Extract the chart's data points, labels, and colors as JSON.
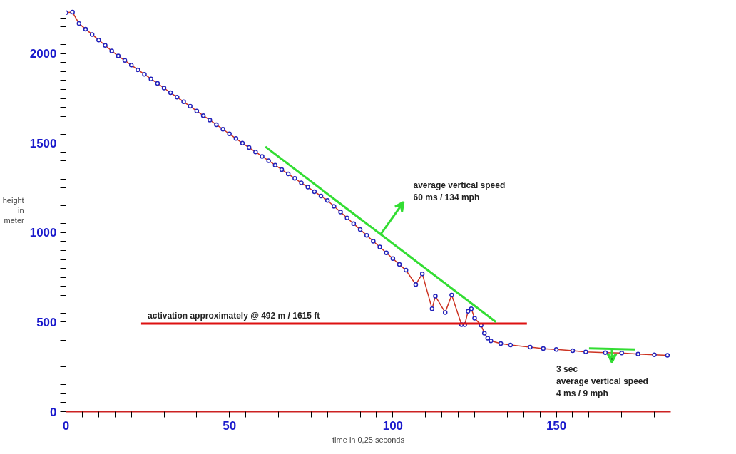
{
  "chart_data": {
    "type": "line",
    "xlabel": "time in 0,25 seconds",
    "ylabel": "height\nin\nmeter",
    "marker": "circle",
    "line_style": "solid",
    "grid": false,
    "xlim": [
      0,
      185
    ],
    "ylim": [
      0,
      2250
    ],
    "xticks": [
      0,
      {
        "value": 5,
        "label": null
      },
      {
        "value": 10,
        "label": null
      },
      {
        "value": 15,
        "label": null
      },
      {
        "value": 20,
        "label": null
      },
      {
        "value": 25,
        "label": null
      },
      {
        "value": 30,
        "label": null
      },
      {
        "value": 35,
        "label": null
      },
      {
        "value": 40,
        "label": null
      },
      {
        "value": 45,
        "label": null
      },
      50,
      {
        "value": 55,
        "label": null
      },
      {
        "value": 60,
        "label": null
      },
      {
        "value": 65,
        "label": null
      },
      {
        "value": 70,
        "label": null
      },
      {
        "value": 75,
        "label": null
      },
      {
        "value": 80,
        "label": null
      },
      {
        "value": 85,
        "label": null
      },
      {
        "value": 90,
        "label": null
      },
      {
        "value": 95,
        "label": null
      },
      100,
      {
        "value": 105,
        "label": null
      },
      {
        "value": 110,
        "label": null
      },
      {
        "value": 115,
        "label": null
      },
      {
        "value": 120,
        "label": null
      },
      {
        "value": 125,
        "label": null
      },
      {
        "value": 130,
        "label": null
      },
      {
        "value": 135,
        "label": null
      },
      {
        "value": 140,
        "label": null
      },
      {
        "value": 145,
        "label": null
      },
      150,
      {
        "value": 155,
        "label": null
      },
      {
        "value": 160,
        "label": null
      },
      {
        "value": 165,
        "label": null
      },
      {
        "value": 170,
        "label": null
      },
      {
        "value": 175,
        "label": null
      },
      {
        "value": 180,
        "label": null
      }
    ],
    "yticks": [
      0,
      {
        "value": 50,
        "label": null
      },
      {
        "value": 100,
        "label": null
      },
      {
        "value": 150,
        "label": null
      },
      {
        "value": 200,
        "label": null
      },
      {
        "value": 250,
        "label": null
      },
      {
        "value": 300,
        "label": null
      },
      {
        "value": 350,
        "label": null
      },
      {
        "value": 400,
        "label": null
      },
      {
        "value": 450,
        "label": null
      },
      500,
      {
        "value": 550,
        "label": null
      },
      {
        "value": 600,
        "label": null
      },
      {
        "value": 650,
        "label": null
      },
      {
        "value": 700,
        "label": null
      },
      {
        "value": 750,
        "label": null
      },
      {
        "value": 800,
        "label": null
      },
      {
        "value": 850,
        "label": null
      },
      {
        "value": 900,
        "label": null
      },
      {
        "value": 950,
        "label": null
      },
      1000,
      {
        "value": 1050,
        "label": null
      },
      {
        "value": 1100,
        "label": null
      },
      {
        "value": 1150,
        "label": null
      },
      {
        "value": 1200,
        "label": null
      },
      {
        "value": 1250,
        "label": null
      },
      {
        "value": 1300,
        "label": null
      },
      {
        "value": 1350,
        "label": null
      },
      {
        "value": 1400,
        "label": null
      },
      {
        "value": 1450,
        "label": null
      },
      1500,
      {
        "value": 1550,
        "label": null
      },
      {
        "value": 1600,
        "label": null
      },
      {
        "value": 1650,
        "label": null
      },
      {
        "value": 1700,
        "label": null
      },
      {
        "value": 1750,
        "label": null
      },
      {
        "value": 1800,
        "label": null
      },
      {
        "value": 1850,
        "label": null
      },
      {
        "value": 1900,
        "label": null
      },
      {
        "value": 1950,
        "label": null
      },
      2000,
      {
        "value": 2050,
        "label": null
      },
      {
        "value": 2100,
        "label": null
      },
      {
        "value": 2150,
        "label": null
      },
      {
        "value": 2200,
        "label": null
      }
    ],
    "series": [
      {
        "color": "#2222bb",
        "x": [
          0,
          2,
          4,
          6,
          8,
          10,
          12,
          14,
          16,
          18,
          20,
          22,
          24,
          26,
          28,
          30,
          32,
          34,
          36,
          38,
          40,
          42,
          44,
          46,
          48,
          50,
          52,
          54,
          56,
          58,
          60,
          62,
          64,
          66,
          68,
          70,
          72,
          74,
          76,
          78,
          80,
          82,
          84,
          86,
          88,
          90,
          92,
          94,
          96,
          98,
          100,
          102,
          104,
          107,
          109,
          112,
          113,
          116,
          118,
          121,
          122,
          123,
          124,
          125,
          127,
          128,
          129,
          130,
          133,
          136,
          142,
          146,
          150,
          155,
          159,
          165,
          170,
          175,
          180,
          184
        ],
        "values": [
          2229,
          2232,
          2168,
          2137,
          2107,
          2076,
          2046,
          2015,
          1987,
          1962,
          1936,
          1910,
          1885,
          1859,
          1834,
          1808,
          1782,
          1757,
          1731,
          1706,
          1680,
          1654,
          1629,
          1603,
          1578,
          1552,
          1526,
          1500,
          1475,
          1451,
          1426,
          1402,
          1377,
          1352,
          1328,
          1303,
          1278,
          1254,
          1229,
          1205,
          1180,
          1147,
          1115,
          1082,
          1050,
          1017,
          985,
          952,
          920,
          887,
          855,
          822,
          790,
          710,
          770,
          574,
          645,
          554,
          651,
          486,
          486,
          561,
          574,
          522,
          483,
          438,
          410,
          395,
          380,
          372,
          360,
          352,
          347,
          340,
          334,
          330,
          328,
          322,
          318,
          315
        ]
      },
      {
        "type": "line",
        "marker": "none",
        "color": "#dd1111",
        "x": [
          23,
          141
        ],
        "values": [
          492,
          492
        ]
      },
      {
        "type": "line",
        "marker": "none",
        "color": "#33dd33",
        "x": [
          61,
          131.5
        ],
        "values": [
          1480,
          501
        ]
      },
      {
        "type": "line",
        "marker": "none",
        "color": "#33dd33",
        "x": [
          160,
          174
        ],
        "values": [
          353,
          347
        ]
      }
    ],
    "annotations": [
      {
        "text": "activation approximately @ 492  m / 1615 ft",
        "x": 25,
        "y": 492
      },
      "average vertical speed\n60  ms  / 134 mph",
      "3 sec\naverage vertical speed\n4 ms / 9 mph"
    ]
  }
}
